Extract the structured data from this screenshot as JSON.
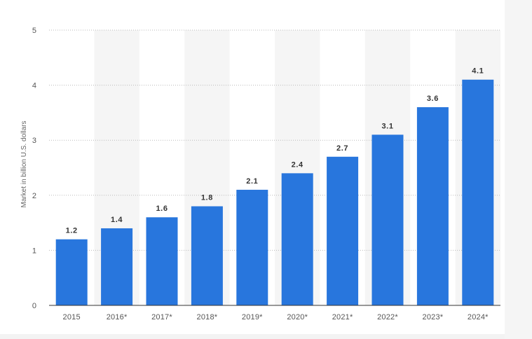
{
  "chart_data": {
    "type": "bar",
    "categories": [
      "2015",
      "2016*",
      "2017*",
      "2018*",
      "2019*",
      "2020*",
      "2021*",
      "2022*",
      "2023*",
      "2024*"
    ],
    "values": [
      1.2,
      1.4,
      1.6,
      1.8,
      2.1,
      2.4,
      2.7,
      3.1,
      3.6,
      4.1
    ],
    "value_labels": [
      "1.2",
      "1.4",
      "1.6",
      "1.8",
      "2.1",
      "2.4",
      "2.7",
      "3.1",
      "3.6",
      "4.1"
    ],
    "ylabel": "Market in billion U.S. dollars",
    "xlabel": "",
    "ylim": [
      0,
      5
    ],
    "yticks": [
      0,
      1,
      2,
      3,
      4,
      5
    ],
    "ytick_labels": [
      "0",
      "1",
      "2",
      "3",
      "4",
      "5"
    ],
    "grid": "horizontal dotted",
    "alternating_column_bands": true
  },
  "colors": {
    "bar": "#2876dd",
    "band": "#f5f5f5",
    "grid": "#bbbbbb",
    "axis": "#333333"
  }
}
